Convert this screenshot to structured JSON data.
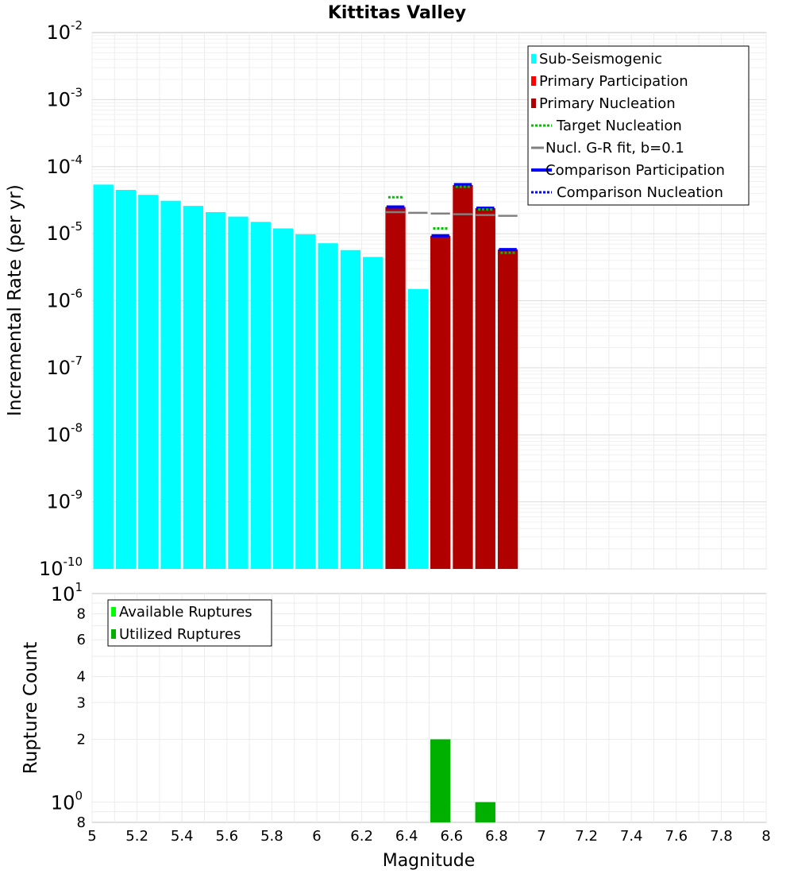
{
  "chart_data": [
    {
      "type": "bar",
      "title": "Kittitas Valley",
      "ylabel": "Incremental Rate (per yr)",
      "yscale": "log",
      "ylim": [
        1e-10,
        0.01
      ],
      "xlim": [
        5,
        8
      ],
      "bar_width": 0.1,
      "y_ticks": [
        {
          "mantissa": "10",
          "exp": "-10"
        },
        {
          "mantissa": "10",
          "exp": "-9"
        },
        {
          "mantissa": "10",
          "exp": "-8"
        },
        {
          "mantissa": "10",
          "exp": "-7"
        },
        {
          "mantissa": "10",
          "exp": "-6"
        },
        {
          "mantissa": "10",
          "exp": "-5"
        },
        {
          "mantissa": "10",
          "exp": "-4"
        },
        {
          "mantissa": "10",
          "exp": "-3"
        },
        {
          "mantissa": "10",
          "exp": "-2"
        }
      ],
      "series": [
        {
          "name": "Sub-Seismogenic",
          "color": "#00ffff",
          "x": [
            5.05,
            5.15,
            5.25,
            5.35,
            5.45,
            5.55,
            5.65,
            5.75,
            5.85,
            5.95,
            6.05,
            6.15,
            6.25,
            6.45
          ],
          "values": [
            5.4e-05,
            4.5e-05,
            3.8e-05,
            3.1e-05,
            2.6e-05,
            2.1e-05,
            1.8e-05,
            1.5e-05,
            1.2e-05,
            9.8e-06,
            7.2e-06,
            5.7e-06,
            4.5e-06,
            1.5e-06
          ]
        },
        {
          "name": "Primary Participation",
          "color": "#ff0000",
          "x": [
            6.35,
            6.55,
            6.65,
            6.75,
            6.85
          ],
          "values": [
            2.5e-05,
            9.3e-06,
            5.3e-05,
            2.4e-05,
            5.8e-06
          ]
        },
        {
          "name": "Primary Nucleation",
          "color": "#b00000",
          "x": [
            6.35,
            6.55,
            6.65,
            6.75,
            6.85
          ],
          "values": [
            2.5e-05,
            9.3e-06,
            5.3e-05,
            2.4e-05,
            5.8e-06
          ]
        },
        {
          "name": "Target Nucleation",
          "color": "#00c000",
          "x": [
            6.35,
            6.55,
            6.65,
            6.75,
            6.85
          ],
          "values": [
            3.5e-05,
            1.2e-05,
            5e-05,
            2.3e-05,
            5.2e-06
          ]
        },
        {
          "name": "Nucl. G-R fit, b=0.1",
          "color": "#808080",
          "x": [
            6.35,
            6.45,
            6.55,
            6.65,
            6.75,
            6.85
          ],
          "values": [
            2.1e-05,
            2.05e-05,
            2e-05,
            1.95e-05,
            1.9e-05,
            1.85e-05
          ]
        },
        {
          "name": "Comparison Participation",
          "color": "#0000ff",
          "x": [
            6.35,
            6.55,
            6.65,
            6.75,
            6.85
          ],
          "values": [
            2.5e-05,
            9.3e-06,
            5.4e-05,
            2.4e-05,
            5.8e-06
          ]
        },
        {
          "name": "Comparison Nucleation",
          "color": "#0000ff",
          "x": [
            6.35,
            6.55,
            6.65,
            6.75,
            6.85
          ],
          "values": [
            2.5e-05,
            9.3e-06,
            5.4e-05,
            2.4e-05,
            5.8e-06
          ]
        }
      ],
      "legend": {
        "position": "top-right",
        "entries": [
          "Sub-Seismogenic",
          "Primary Participation",
          "Primary Nucleation",
          "Target Nucleation",
          "Nucl. G-R fit, b=0.1",
          "Comparison Participation",
          "Comparison Nucleation"
        ]
      }
    },
    {
      "type": "bar",
      "ylabel": "Rupture Count",
      "xlabel": "Magnitude",
      "yscale": "log",
      "ylim": [
        0.8,
        10
      ],
      "xlim": [
        5,
        8
      ],
      "bar_width": 0.1,
      "y_ticks": [
        {
          "value": 0.8,
          "label": "8",
          "exp": ""
        },
        {
          "value": 1,
          "label": "10",
          "exp": "0"
        },
        {
          "value": 2,
          "label": "2",
          "exp": ""
        },
        {
          "value": 3,
          "label": "3",
          "exp": ""
        },
        {
          "value": 4,
          "label": "4",
          "exp": ""
        },
        {
          "value": 6,
          "label": "6",
          "exp": ""
        },
        {
          "value": 8,
          "label": "8",
          "exp": ""
        },
        {
          "value": 10,
          "label": "10",
          "exp": "1"
        }
      ],
      "x_ticks": [
        "5",
        "5.2",
        "5.4",
        "5.6",
        "5.8",
        "6",
        "6.2",
        "6.4",
        "6.6",
        "6.8",
        "7",
        "7.2",
        "7.4",
        "7.6",
        "7.8",
        "8"
      ],
      "series": [
        {
          "name": "Available Ruptures",
          "color": "#00ff00",
          "x": [
            6.55,
            6.75
          ],
          "values": [
            2,
            1
          ]
        },
        {
          "name": "Utilized Ruptures",
          "color": "#00b000",
          "x": [
            6.55,
            6.75
          ],
          "values": [
            2,
            1
          ]
        }
      ],
      "legend": {
        "position": "top-left",
        "entries": [
          "Available Ruptures",
          "Utilized Ruptures"
        ]
      }
    }
  ]
}
